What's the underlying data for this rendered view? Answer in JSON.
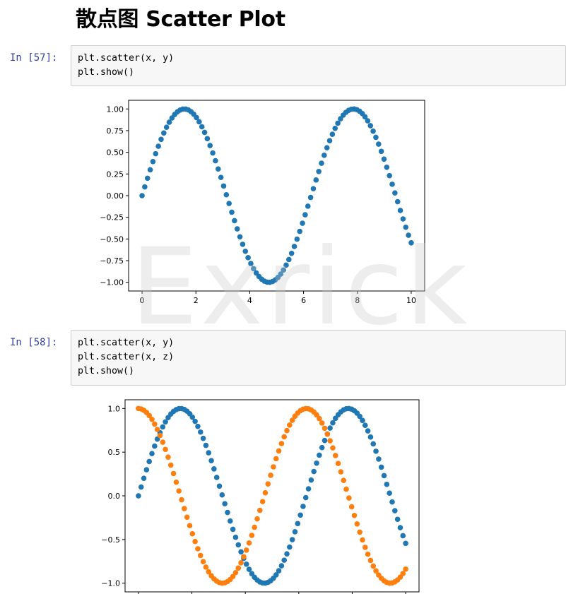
{
  "page": {
    "heading": "散点图 Scatter Plot"
  },
  "cells": [
    {
      "prompt": "In  [57]:",
      "code": [
        "plt.scatter(x, y)",
        "plt.show()"
      ]
    },
    {
      "prompt": "In  [58]:",
      "code": [
        "plt.scatter(x, y)",
        "plt.scatter(x, z)",
        "plt.show()"
      ]
    }
  ],
  "watermark": "Exrick",
  "colors": {
    "series1": "#1f77b4",
    "series2": "#ff7f0e",
    "prompt": "#303f9f"
  },
  "chart_data": [
    {
      "type": "scatter",
      "title": "",
      "xlabel": "",
      "ylabel": "",
      "xlim": [
        -0.5,
        10.5
      ],
      "ylim": [
        -1.1,
        1.1
      ],
      "xticks": [
        "0",
        "2",
        "4",
        "6",
        "8",
        "10"
      ],
      "yticks": [
        "1.00",
        "0.75",
        "0.50",
        "0.25",
        "0.00",
        "−0.25",
        "−0.50",
        "−0.75",
        "−1.00"
      ],
      "grid": false,
      "series": [
        {
          "function": "sin",
          "x_start": 0,
          "x_end": 10,
          "n_points": 100
        }
      ]
    },
    {
      "type": "scatter",
      "title": "",
      "xlabel": "",
      "ylabel": "",
      "xlim": [
        -0.5,
        10.5
      ],
      "ylim": [
        -1.1,
        1.1
      ],
      "xticks": [],
      "yticks": [
        "1.0",
        "0.5",
        "0.0",
        "−0.5",
        "−1.0"
      ],
      "grid": false,
      "series": [
        {
          "function": "sin",
          "x_start": 0,
          "x_end": 10,
          "n_points": 100
        },
        {
          "function": "cos",
          "x_start": 0,
          "x_end": 10,
          "n_points": 100
        }
      ]
    }
  ]
}
